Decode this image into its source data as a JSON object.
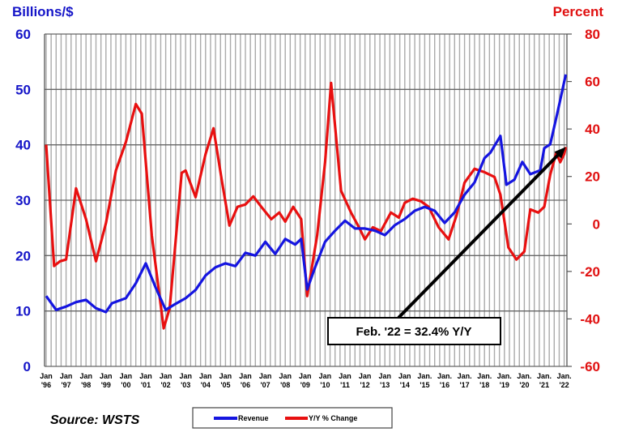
{
  "chart_data": {
    "type": "line",
    "title": "",
    "left_axis": {
      "label": "Billions/$",
      "ylim": [
        0,
        60
      ],
      "ticks": [
        "0",
        "10",
        "20",
        "30",
        "40",
        "50",
        "60"
      ],
      "color": "#1515c8"
    },
    "right_axis": {
      "label": "Percent",
      "ylim": [
        -60,
        80
      ],
      "ticks": [
        "-60",
        "-40",
        "-20",
        "0",
        "20",
        "40",
        "60",
        "80"
      ],
      "color": "#e01010"
    },
    "x_ticks": [
      [
        "Jan",
        "'96"
      ],
      [
        "Jan",
        "'97"
      ],
      [
        "Jan",
        "'98"
      ],
      [
        "Jan",
        "'99"
      ],
      [
        "Jan",
        "'00"
      ],
      [
        "Jan",
        "'01"
      ],
      [
        "Jan",
        "'02"
      ],
      [
        "Jan",
        "'03"
      ],
      [
        "Jan",
        "'04"
      ],
      [
        "Jan",
        "'05"
      ],
      [
        "Jan",
        "'06"
      ],
      [
        "Jan",
        "'07"
      ],
      [
        "Jan",
        "'08"
      ],
      [
        "Jan",
        "'09"
      ],
      [
        "Jan",
        "'10"
      ],
      [
        "Jan",
        "'11"
      ],
      [
        "Jan",
        "'12"
      ],
      [
        "Jan",
        "'13"
      ],
      [
        "Jan",
        "'14"
      ],
      [
        "Jan.",
        "'15"
      ],
      [
        "Jan.",
        "'16"
      ],
      [
        "Jan.",
        "'17"
      ],
      [
        "Jan.",
        "'18"
      ],
      [
        "Jan.",
        "'19"
      ],
      [
        "Jan.",
        "'20"
      ],
      [
        "Jan.",
        "'21"
      ],
      [
        "Jan.",
        "'22"
      ]
    ],
    "xlim": [
      1996,
      2022.1
    ],
    "grid": true,
    "legend_placement": "bottom",
    "series": [
      {
        "name": "Revenue",
        "axis": "left",
        "color": "#1515e0",
        "x": [
          1996.0,
          1996.5,
          1997.0,
          1997.5,
          1998.0,
          1998.5,
          1999.0,
          1999.3,
          2000.0,
          2000.5,
          2001.0,
          2001.5,
          2002.0,
          2002.5,
          2003.0,
          2003.5,
          2004.0,
          2004.5,
          2005.0,
          2005.5,
          2006.0,
          2006.5,
          2007.0,
          2007.5,
          2008.0,
          2008.5,
          2008.8,
          2009.1,
          2009.5,
          2010.0,
          2010.5,
          2011.0,
          2011.5,
          2012.0,
          2012.5,
          2013.0,
          2013.5,
          2014.0,
          2014.5,
          2015.0,
          2015.5,
          2016.0,
          2016.5,
          2017.0,
          2017.5,
          2018.0,
          2018.3,
          2018.8,
          2019.1,
          2019.5,
          2019.9,
          2020.3,
          2020.8,
          2021.0,
          2021.3,
          2021.7,
          2022.08
        ],
        "values": [
          12.7,
          10.2,
          10.8,
          11.6,
          12.0,
          10.5,
          9.8,
          11.4,
          12.3,
          15.0,
          18.6,
          14.2,
          10.2,
          11.3,
          12.3,
          13.8,
          16.4,
          17.9,
          18.6,
          18.1,
          20.5,
          20.0,
          22.5,
          20.3,
          23.0,
          22.0,
          23.0,
          13.9,
          17.9,
          22.5,
          24.5,
          26.3,
          24.9,
          24.9,
          24.5,
          23.7,
          25.5,
          26.6,
          28.1,
          28.8,
          28.1,
          25.9,
          27.8,
          31.0,
          33.2,
          37.6,
          38.6,
          41.6,
          32.8,
          33.7,
          36.9,
          34.7,
          35.4,
          39.4,
          40.1,
          46.4,
          52.7
        ]
      },
      {
        "name": "Y/Y % Change",
        "axis": "right",
        "color": "#e81010",
        "x": [
          1996.0,
          1996.4,
          1996.7,
          1997.0,
          1997.5,
          1997.8,
          1998.0,
          1998.5,
          1999.0,
          1999.5,
          2000.0,
          2000.5,
          2000.8,
          2001.3,
          2001.9,
          2002.2,
          2002.8,
          2003.0,
          2003.5,
          2004.0,
          2004.4,
          2004.8,
          2005.2,
          2005.6,
          2006.0,
          2006.4,
          2006.8,
          2007.3,
          2007.7,
          2008.0,
          2008.4,
          2008.8,
          2009.1,
          2009.6,
          2010.0,
          2010.3,
          2010.8,
          2011.3,
          2011.7,
          2012.0,
          2012.4,
          2012.8,
          2013.3,
          2013.7,
          2014.0,
          2014.4,
          2014.8,
          2015.2,
          2015.7,
          2016.2,
          2016.6,
          2017.0,
          2017.5,
          2018.0,
          2018.5,
          2018.8,
          2019.2,
          2019.6,
          2020.0,
          2020.3,
          2020.7,
          2021.0,
          2021.3,
          2021.6,
          2021.8,
          2022.0,
          2022.08
        ],
        "values": [
          33.4,
          -17.7,
          -15.7,
          -15.0,
          15.0,
          7.2,
          2.0,
          -15.7,
          0.3,
          22.5,
          34.5,
          50.5,
          46.4,
          -4.8,
          -44.0,
          -35.5,
          21.5,
          22.5,
          11.3,
          29.4,
          40.3,
          19.1,
          -0.7,
          7.2,
          8.2,
          11.6,
          7.2,
          2.0,
          4.8,
          1.0,
          7.2,
          2.0,
          -30.4,
          -4.8,
          26.0,
          59.4,
          14.0,
          4.8,
          -1.4,
          -6.5,
          -1.4,
          -3.0,
          4.8,
          2.7,
          8.9,
          10.6,
          9.6,
          7.2,
          -1.4,
          -6.5,
          3.8,
          17.4,
          23.2,
          21.8,
          19.8,
          12.3,
          -9.9,
          -15.0,
          -11.6,
          6.1,
          4.8,
          7.2,
          20.8,
          30.0,
          26.0,
          29.4,
          32.4
        ]
      }
    ],
    "annotation": {
      "text": "Feb. '22 = 32.4% Y/Y",
      "x": 2022.08,
      "y_percent": 32.4
    },
    "source": "Source: WSTS"
  }
}
